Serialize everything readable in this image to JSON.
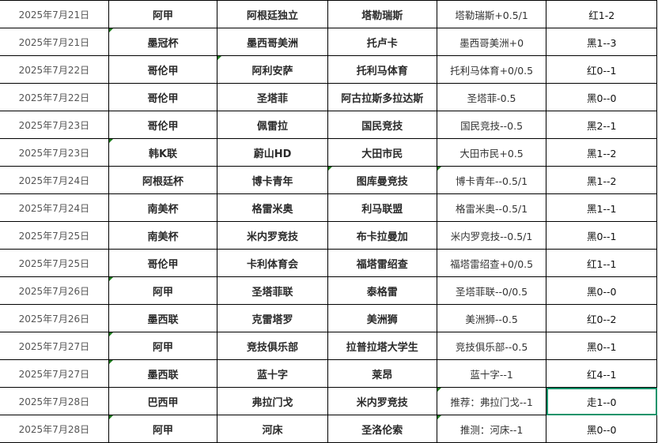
{
  "rows": [
    {
      "date": "2025年7月21日",
      "league": "阿甲",
      "home": "阿根廷独立",
      "away": "塔勒瑞斯",
      "pick": "塔勒瑞斯+0.5/1",
      "result": "红1-2",
      "markers": []
    },
    {
      "date": "2025年7月21日",
      "league": "墨冠杯",
      "home": "墨西哥美洲",
      "away": "托卢卡",
      "pick": "墨西哥美洲+0",
      "result": "黑1--3",
      "markers": [
        "league"
      ]
    },
    {
      "date": "2025年7月22日",
      "league": "哥伦甲",
      "home": "阿利安萨",
      "away": "托利马体育",
      "pick": "托利马体育+0/0.5",
      "result": "红0--1",
      "markers": [
        "home"
      ]
    },
    {
      "date": "2025年7月22日",
      "league": "哥伦甲",
      "home": "圣塔菲",
      "away": "阿古拉斯多拉达斯",
      "pick": "圣塔菲-0.5",
      "result": "黑0--0",
      "markers": []
    },
    {
      "date": "2025年7月23日",
      "league": "哥伦甲",
      "home": "佩雷拉",
      "away": "国民竞技",
      "pick": "国民竞技--0.5",
      "result": "黑2--1",
      "markers": []
    },
    {
      "date": "2025年7月23日",
      "league": "韩K联",
      "home": "蔚山HD",
      "away": "大田市民",
      "pick": "大田市民+0.5",
      "result": "黑1--2",
      "markers": [
        "league"
      ]
    },
    {
      "date": "2025年7月24日",
      "league": "阿根廷杯",
      "home": "博卡青年",
      "away": "图库曼竞技",
      "pick": "博卡青年--0.5/1",
      "result": "黑1--2",
      "markers": [
        "away",
        "pick"
      ]
    },
    {
      "date": "2025年7月24日",
      "league": "南美杯",
      "home": "格雷米奥",
      "away": "利马联盟",
      "pick": "格雷米奥--0.5/1",
      "result": "黑1--1",
      "markers": []
    },
    {
      "date": "2025年7月25日",
      "league": "南美杯",
      "home": "米内罗竞技",
      "away": "布卡拉曼加",
      "pick": "米内罗竞技--0.5/1",
      "result": "黑0--1",
      "markers": []
    },
    {
      "date": "2025年7月25日",
      "league": "哥伦甲",
      "home": "卡利体育会",
      "away": "福塔雷绍查",
      "pick": "福塔雷绍查+0/0.5",
      "result": "红1--1",
      "markers": []
    },
    {
      "date": "2025年7月26日",
      "league": "阿甲",
      "home": "圣塔菲联",
      "away": "泰格雷",
      "pick": "圣塔菲联--0/0.5",
      "result": "黑0--0",
      "markers": [
        "league"
      ]
    },
    {
      "date": "2025年7月26日",
      "league": "墨西联",
      "home": "克雷塔罗",
      "away": "美洲狮",
      "pick": "美洲狮--0.5",
      "result": "红0--2",
      "markers": []
    },
    {
      "date": "2025年7月27日",
      "league": "阿甲",
      "home": "竞技俱乐部",
      "away": "拉普拉塔大学生",
      "pick": "竞技俱乐部--0.5",
      "result": "黑0--1",
      "markers": [
        "league"
      ]
    },
    {
      "date": "2025年7月27日",
      "league": "墨西联",
      "home": "蓝十字",
      "away": "莱昂",
      "pick": "蓝十字--1",
      "result": "红4--1",
      "markers": [
        "league"
      ]
    },
    {
      "date": "2025年7月28日",
      "league": "巴西甲",
      "home": "弗拉门戈",
      "away": "米内罗竞技",
      "pick": "推荐：弗拉门戈--1",
      "result": "走1--0",
      "markers": [
        "pick"
      ],
      "selected": true
    },
    {
      "date": "2025年7月28日",
      "league": "阿甲",
      "home": "河床",
      "away": "圣洛伦索",
      "pick": "推测：河床--1",
      "result": "黑0--0",
      "markers": [
        "league",
        "pick"
      ]
    }
  ],
  "colors": {
    "grid": "#000000",
    "selection": "#15936a",
    "comment_marker": "#1a7a1a"
  }
}
